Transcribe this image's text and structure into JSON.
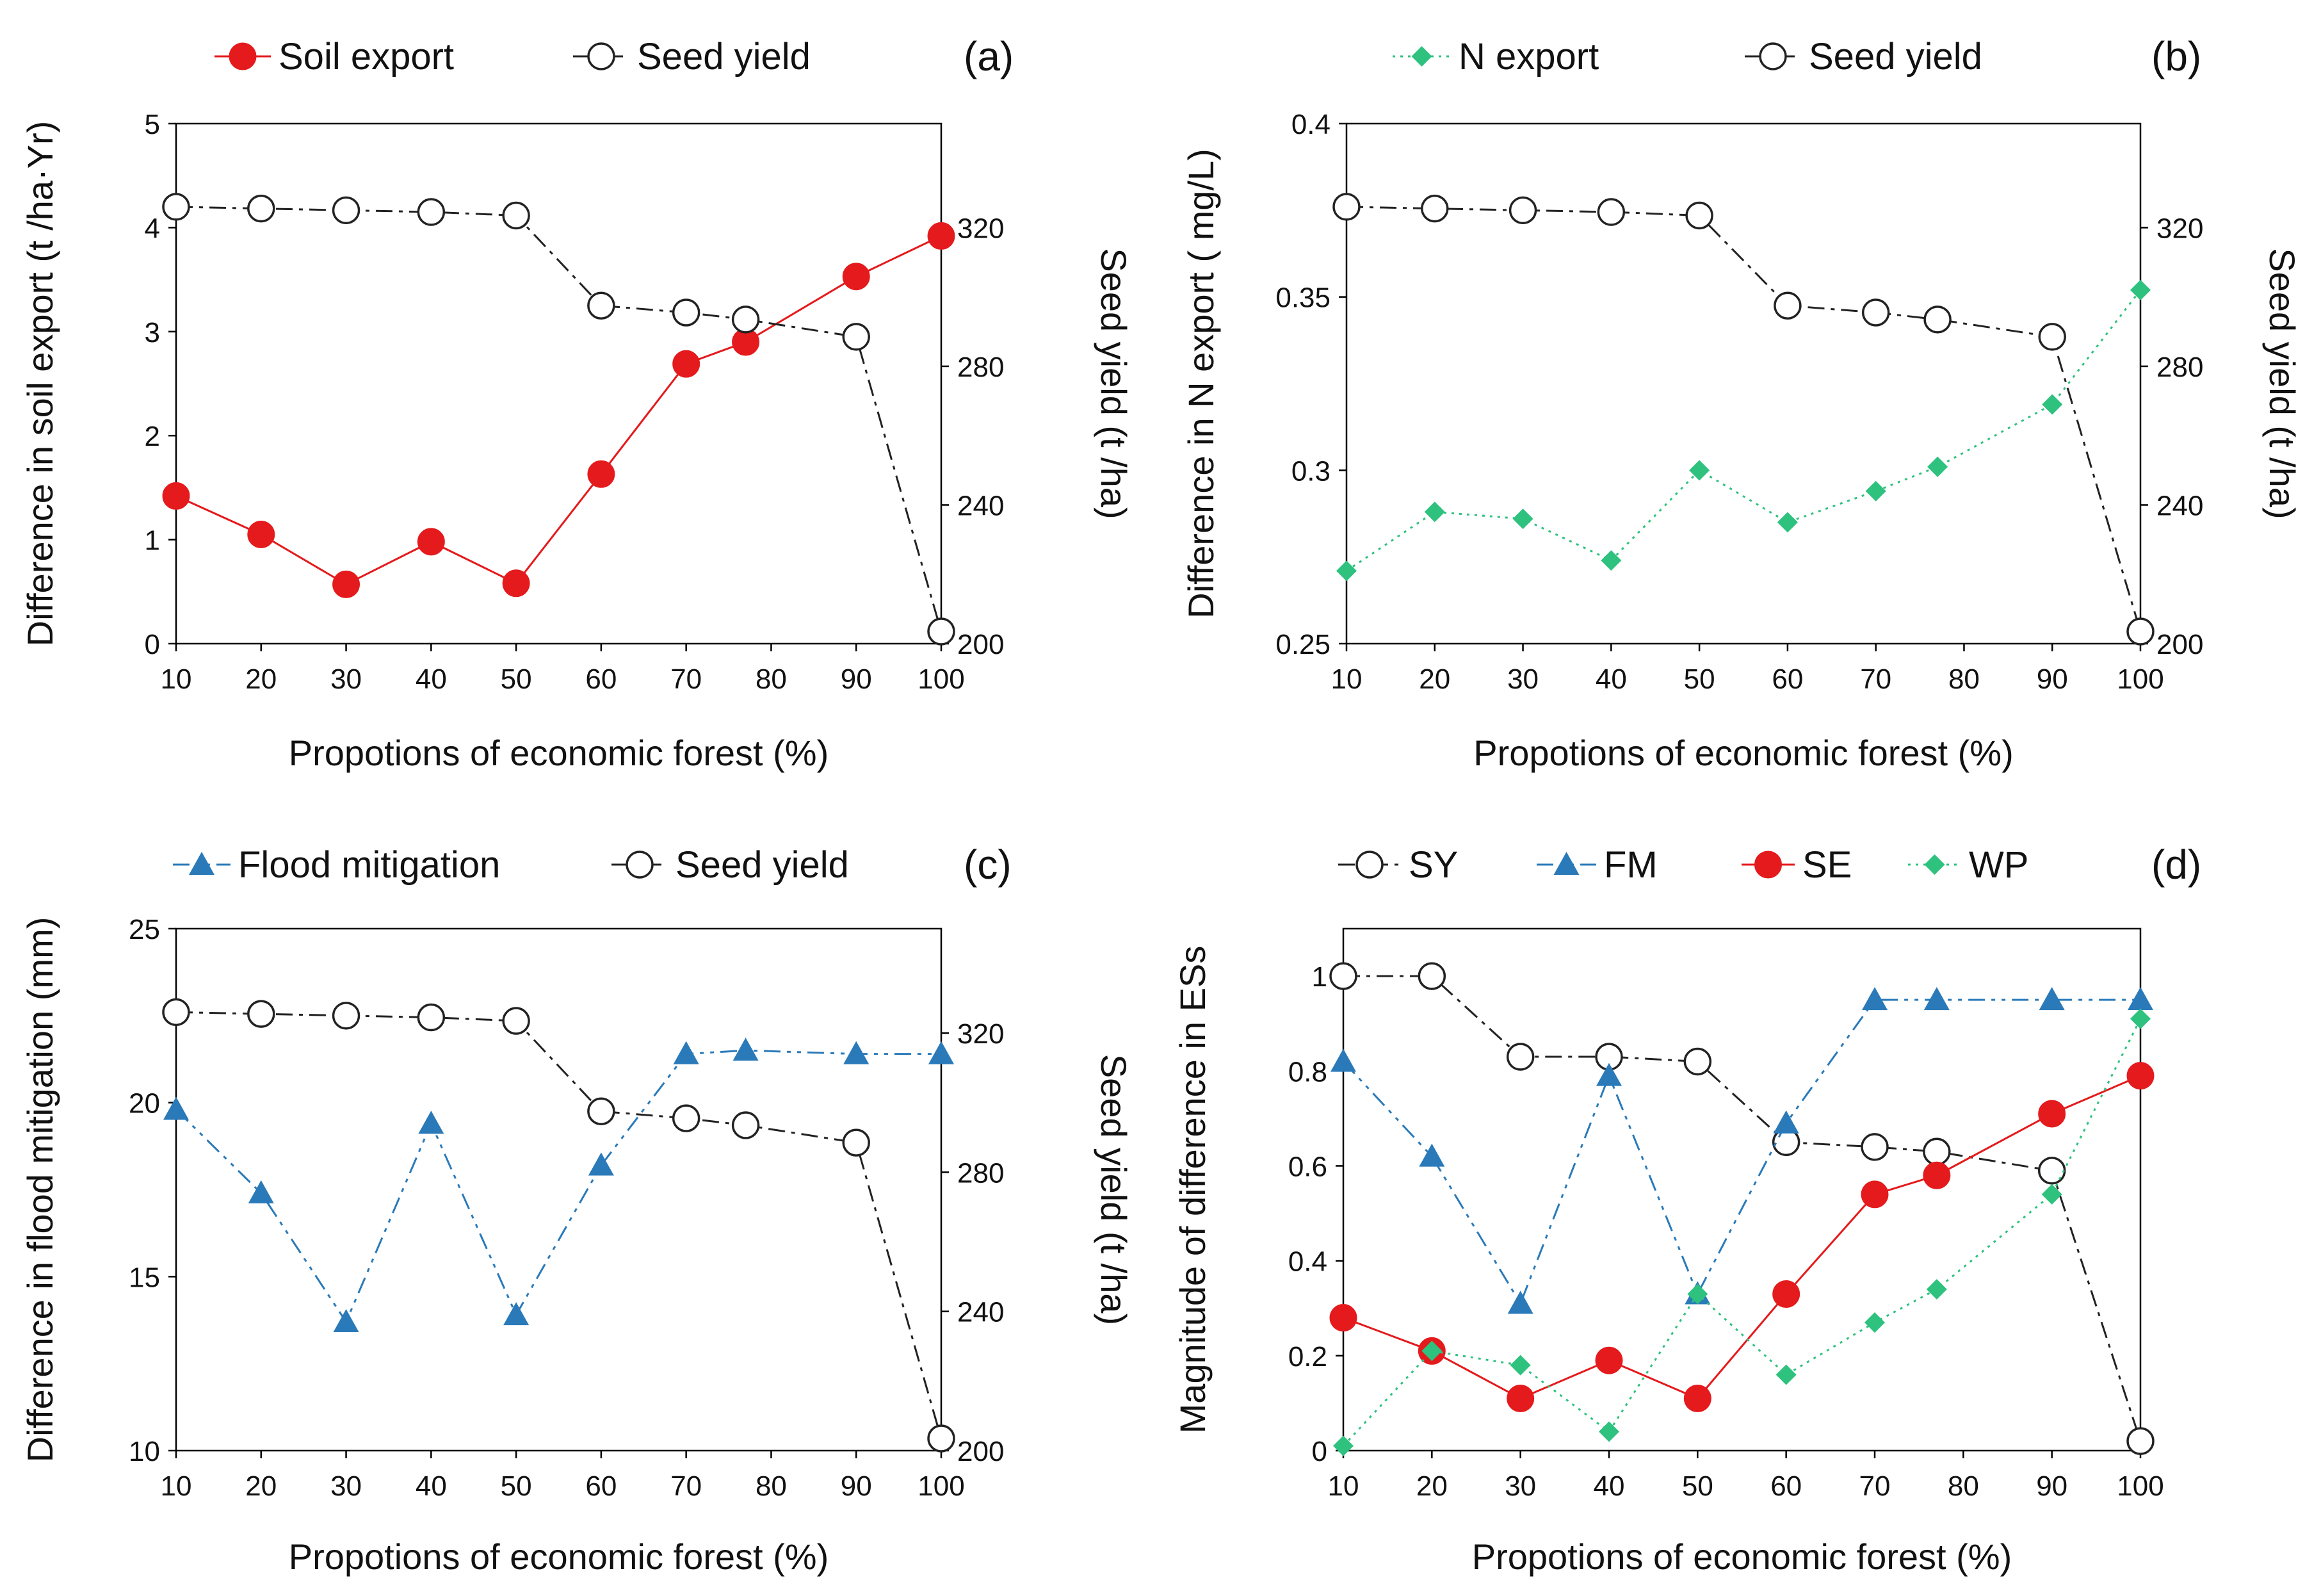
{
  "chart_data": [
    {
      "id": "a",
      "type": "line",
      "panel_label": "(a)",
      "xlabel": "Propotions of economic forest (%)",
      "ylabel_left": "Difference in soil export (t /ha·Yr)",
      "ylabel_right": "Seed yield (t /ha)",
      "x": [
        10,
        20,
        30,
        40,
        50,
        60,
        70,
        77,
        90,
        100
      ],
      "x_ticks": [
        "10",
        "20",
        "30",
        "40",
        "50",
        "60",
        "70",
        "80",
        "90",
        "100"
      ],
      "xlim": [
        10,
        100
      ],
      "ylim_left": [
        0,
        5
      ],
      "y_ticks_left": [
        "0",
        "1",
        "2",
        "3",
        "4",
        "5"
      ],
      "ylim_right": [
        200,
        350
      ],
      "y_ticks_right": [
        "200",
        "240",
        "280",
        "320"
      ],
      "legend_position": "top",
      "series": [
        {
          "name": "Soil export",
          "axis": "left",
          "style": "soil",
          "color": "#e41a1c",
          "values": [
            1.42,
            1.05,
            0.57,
            0.98,
            0.58,
            1.63,
            2.69,
            2.9,
            3.53,
            3.92
          ]
        },
        {
          "name": "Seed yield",
          "axis": "right",
          "style": "seed",
          "color": "#222222",
          "values": [
            326,
            325.5,
            325,
            324.5,
            323.5,
            297.5,
            295.5,
            293.5,
            288.5,
            203.5
          ]
        }
      ]
    },
    {
      "id": "b",
      "type": "line",
      "panel_label": "(b)",
      "xlabel": "Propotions of economic forest (%)",
      "ylabel_left": "Difference in N export ( mg/L)",
      "ylabel_right": "Seed yield (t /ha)",
      "x": [
        10,
        20,
        30,
        40,
        50,
        60,
        70,
        77,
        90,
        100
      ],
      "x_ticks": [
        "10",
        "20",
        "30",
        "40",
        "50",
        "60",
        "70",
        "80",
        "90",
        "100"
      ],
      "xlim": [
        10,
        100
      ],
      "ylim_left": [
        0.25,
        0.4
      ],
      "y_ticks_left": [
        "0.25",
        "0.3",
        "0.35",
        "0.4"
      ],
      "ylim_right": [
        200,
        350
      ],
      "y_ticks_right": [
        "200",
        "240",
        "280",
        "320"
      ],
      "legend_position": "top",
      "series": [
        {
          "name": "N export",
          "axis": "left",
          "style": "wp",
          "color": "#2ec27e",
          "values": [
            0.271,
            0.288,
            0.286,
            0.274,
            0.3,
            0.285,
            0.294,
            0.301,
            0.319,
            0.352
          ]
        },
        {
          "name": "Seed yield",
          "axis": "right",
          "style": "seed",
          "color": "#222222",
          "values": [
            326,
            325.5,
            325,
            324.5,
            323.5,
            297.5,
            295.5,
            293.5,
            288.5,
            203.5
          ]
        }
      ]
    },
    {
      "id": "c",
      "type": "line",
      "panel_label": "(c)",
      "xlabel": "Propotions of economic forest (%)",
      "ylabel_left": "Difference in flood mitigation (mm)",
      "ylabel_right": "Seed yield (t /ha)",
      "x": [
        10,
        20,
        30,
        40,
        50,
        60,
        70,
        77,
        90,
        100
      ],
      "x_ticks": [
        "10",
        "20",
        "30",
        "40",
        "50",
        "60",
        "70",
        "80",
        "90",
        "100"
      ],
      "xlim": [
        10,
        100
      ],
      "ylim_left": [
        10,
        25
      ],
      "y_ticks_left": [
        "10",
        "15",
        "20",
        "25"
      ],
      "ylim_right": [
        200,
        350
      ],
      "y_ticks_right": [
        "200",
        "240",
        "280",
        "320"
      ],
      "legend_position": "top",
      "series": [
        {
          "name": "Flood mitigation",
          "axis": "left",
          "style": "fm",
          "color": "#2a7ab9",
          "values": [
            19.8,
            17.4,
            13.7,
            19.4,
            13.9,
            18.2,
            21.4,
            21.5,
            21.4,
            21.4
          ]
        },
        {
          "name": "Seed yield",
          "axis": "right",
          "style": "seed",
          "color": "#222222",
          "values": [
            326,
            325.5,
            325,
            324.5,
            323.5,
            297.5,
            295.5,
            293.5,
            288.5,
            203.5
          ]
        }
      ]
    },
    {
      "id": "d",
      "type": "line",
      "panel_label": "(d)",
      "xlabel": "Propotions of economic forest (%)",
      "ylabel_left": "Magnitude of difference in ESs",
      "x": [
        10,
        20,
        30,
        40,
        50,
        60,
        70,
        77,
        90,
        100
      ],
      "x_ticks": [
        "10",
        "20",
        "30",
        "40",
        "50",
        "60",
        "70",
        "80",
        "90",
        "100"
      ],
      "xlim": [
        10,
        100
      ],
      "ylim_left": [
        0,
        1.1
      ],
      "y_ticks_left": [
        "0",
        "0.2",
        "0.4",
        "0.6",
        "0.8",
        "1"
      ],
      "legend_position": "top",
      "series": [
        {
          "name": "SY",
          "axis": "left",
          "style": "seed",
          "color": "#222222",
          "values": [
            1.0,
            1.0,
            0.83,
            0.83,
            0.82,
            0.65,
            0.64,
            0.63,
            0.59,
            0.02
          ]
        },
        {
          "name": "FM",
          "axis": "left",
          "style": "fm",
          "color": "#2a7ab9",
          "values": [
            0.82,
            0.62,
            0.31,
            0.79,
            0.33,
            0.69,
            0.95,
            0.95,
            0.95,
            0.95
          ]
        },
        {
          "name": "SE",
          "axis": "left",
          "style": "soil",
          "color": "#e41a1c",
          "values": [
            0.28,
            0.21,
            0.11,
            0.19,
            0.11,
            0.33,
            0.54,
            0.58,
            0.71,
            0.79
          ]
        },
        {
          "name": "WP",
          "axis": "left",
          "style": "wp",
          "color": "#2ec27e",
          "values": [
            0.01,
            0.21,
            0.18,
            0.04,
            0.33,
            0.16,
            0.27,
            0.34,
            0.54,
            0.91
          ]
        }
      ]
    }
  ]
}
